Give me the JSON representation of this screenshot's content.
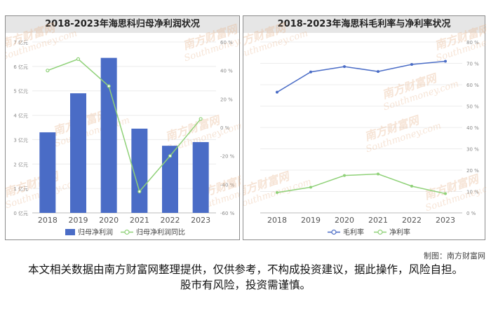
{
  "chart_data": [
    {
      "type": "bar+line",
      "title": "2018-2023年海思科归母净利润状况",
      "categories": [
        "2018",
        "2019",
        "2020",
        "2021",
        "2022",
        "2023"
      ],
      "series": [
        {
          "name": "归母净利润",
          "type": "bar",
          "axis": "left",
          "color": "#4a6cc6",
          "values": [
            3.3,
            4.9,
            6.35,
            3.45,
            2.75,
            2.9
          ]
        },
        {
          "name": "归母净利润同比",
          "type": "line",
          "axis": "right",
          "color": "#8fd178",
          "values": [
            40,
            48,
            29,
            -45,
            -20,
            6
          ]
        }
      ],
      "yleft": {
        "ticks": [
          "7 亿元",
          "6 亿元",
          "5 亿元",
          "4 亿元",
          "3 亿元",
          "2 亿元",
          "1 亿元",
          "0 亿元"
        ],
        "lim": [
          0,
          7
        ]
      },
      "yright": {
        "ticks": [
          "60 %",
          "40 %",
          "20 %",
          "0 %",
          "-20 %",
          "-40 %",
          "-60 %"
        ],
        "lim": [
          -60,
          60
        ]
      },
      "legend_position": "bottom"
    },
    {
      "type": "line",
      "title": "2018-2023年海思科毛利率与净利率状况",
      "categories": [
        "2018",
        "2019",
        "2020",
        "2021",
        "2022",
        "2023"
      ],
      "series": [
        {
          "name": "毛利率",
          "color": "#4a6cc6",
          "values": [
            56.5,
            66,
            68.5,
            66.2,
            69.5,
            71
          ]
        },
        {
          "name": "净利率",
          "color": "#8fd178",
          "values": [
            9.5,
            12,
            17.5,
            18.2,
            12.5,
            9
          ]
        }
      ],
      "yright": {
        "ticks": [
          "80 %",
          "70 %",
          "60 %",
          "50 %",
          "40 %",
          "30 %",
          "20 %",
          "10 %",
          "0 %"
        ],
        "lim": [
          0,
          80
        ]
      },
      "legend_position": "bottom"
    }
  ],
  "watermark": {
    "cn": "南方财富网",
    "en": "Southmoney.com"
  },
  "credit": "制图：南方财富网",
  "disclaimer": "本文相关数据由南方财富网整理提供，仅供参考，不构成投资建议，据此操作，风险自担。股市有风险，投资需谨慎。"
}
